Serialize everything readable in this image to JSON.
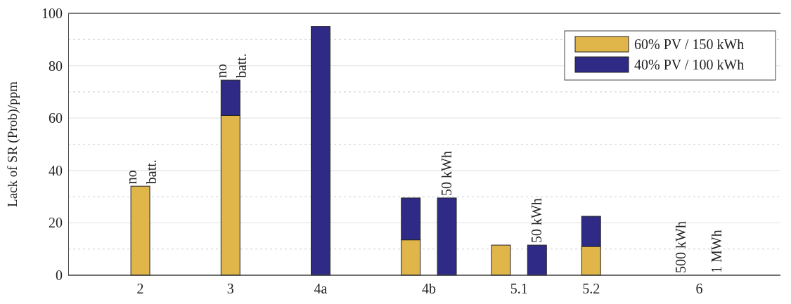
{
  "chart_data": {
    "type": "bar",
    "stacked": true,
    "ylabel": "Lack of SR (Prob)/ppm",
    "categories": [
      "2",
      null,
      null,
      null,
      null,
      "3",
      null,
      null,
      null,
      null,
      "4a",
      null,
      null,
      null,
      null,
      null,
      "4b",
      null,
      null,
      null,
      null,
      "5.1",
      null,
      null,
      null,
      "5.2",
      null,
      null,
      null,
      null,
      null,
      "6",
      null
    ],
    "ylim": [
      0,
      100
    ],
    "yticks": [
      0,
      {
        "value": 10,
        "label": null
      },
      20,
      {
        "value": 30,
        "label": null
      },
      40,
      {
        "value": 50,
        "label": null
      },
      60,
      {
        "value": 70,
        "label": null
      },
      80,
      {
        "value": 90,
        "label": null
      },
      100
    ],
    "grid": "y",
    "legend": "top right",
    "series": [
      {
        "name": "60% PV / 150 kWh",
        "color": "#e0b54a",
        "values": [
          34,
          null,
          null,
          null,
          null,
          61,
          null,
          null,
          null,
          null,
          null,
          null,
          null,
          null,
          null,
          13.5,
          null,
          null,
          null,
          null,
          11.5,
          null,
          null,
          null,
          null,
          11,
          null,
          null,
          null,
          null,
          null,
          null,
          null
        ]
      },
      {
        "name": "40% PV / 100 kWh",
        "color": "#2e2a85",
        "values": [
          null,
          null,
          null,
          null,
          null,
          13.5,
          null,
          null,
          null,
          null,
          95,
          null,
          null,
          null,
          null,
          16,
          null,
          29.5,
          null,
          null,
          null,
          null,
          11.5,
          null,
          null,
          11.5,
          null,
          null,
          null,
          null,
          0,
          null,
          0
        ]
      }
    ],
    "annotations": [
      {
        "text": "no\nbatt.",
        "x": "2",
        "y": 34
      },
      {
        "text": "no\nbatt.",
        "x": "3",
        "y": 74.5
      },
      "50 kWh",
      "50 kWh",
      "500 kWh",
      "1 MWh"
    ]
  }
}
